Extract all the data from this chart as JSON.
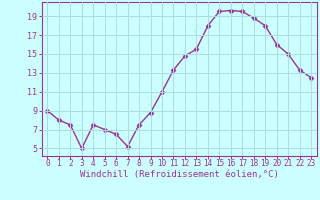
{
  "x": [
    0,
    1,
    2,
    3,
    4,
    5,
    6,
    7,
    8,
    9,
    10,
    11,
    12,
    13,
    14,
    15,
    16,
    17,
    18,
    19,
    20,
    21,
    22,
    23
  ],
  "y": [
    9.0,
    8.0,
    7.5,
    5.0,
    7.5,
    7.0,
    6.5,
    5.2,
    7.5,
    8.8,
    11.0,
    13.3,
    14.8,
    15.5,
    18.0,
    19.5,
    19.6,
    19.5,
    18.8,
    18.0,
    16.0,
    15.0,
    13.3,
    12.5
  ],
  "line_color": "#993399",
  "marker": "D",
  "markersize": 2.5,
  "linewidth": 1.0,
  "xlabel": "Windchill (Refroidissement éolien,°C)",
  "xlabel_fontsize": 6.5,
  "bg_color": "#ccffff",
  "grid_color": "#aadddd",
  "tick_color": "#993399",
  "label_color": "#993399",
  "xlim": [
    -0.5,
    23.5
  ],
  "ylim": [
    4.2,
    20.5
  ],
  "yticks": [
    5,
    7,
    9,
    11,
    13,
    15,
    17,
    19
  ],
  "xticks": [
    0,
    1,
    2,
    3,
    4,
    5,
    6,
    7,
    8,
    9,
    10,
    11,
    12,
    13,
    14,
    15,
    16,
    17,
    18,
    19,
    20,
    21,
    22,
    23
  ],
  "ytick_fontsize": 6.0,
  "xtick_fontsize": 5.5
}
